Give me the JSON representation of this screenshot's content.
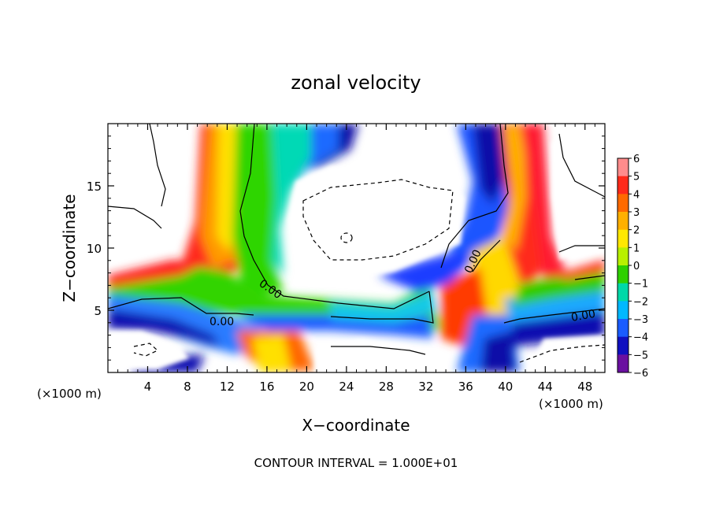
{
  "chart_data": {
    "type": "heatmap",
    "title": "zonal velocity",
    "xlabel": "X−coordinate",
    "ylabel": "Z−coordinate",
    "x_unit_left": "(×1000 m)",
    "x_unit_right": "(×1000 m)",
    "xlim": [
      0,
      50
    ],
    "ylim": [
      0,
      20
    ],
    "x_ticks": [
      4,
      8,
      12,
      16,
      20,
      24,
      28,
      32,
      36,
      40,
      44,
      48
    ],
    "y_ticks": [
      5,
      10,
      15
    ],
    "colorbar": {
      "ticks": [
        "6",
        "5",
        "4",
        "3",
        "2",
        "1",
        "0",
        "−1",
        "−2",
        "−3",
        "−4",
        "−5",
        "−6"
      ],
      "range": [
        -6,
        6
      ]
    },
    "contour_labels": [
      "0.00",
      "0.00",
      "0.00",
      "0.00"
    ],
    "footnote": "CONTOUR INTERVAL = 1.000E+01"
  }
}
